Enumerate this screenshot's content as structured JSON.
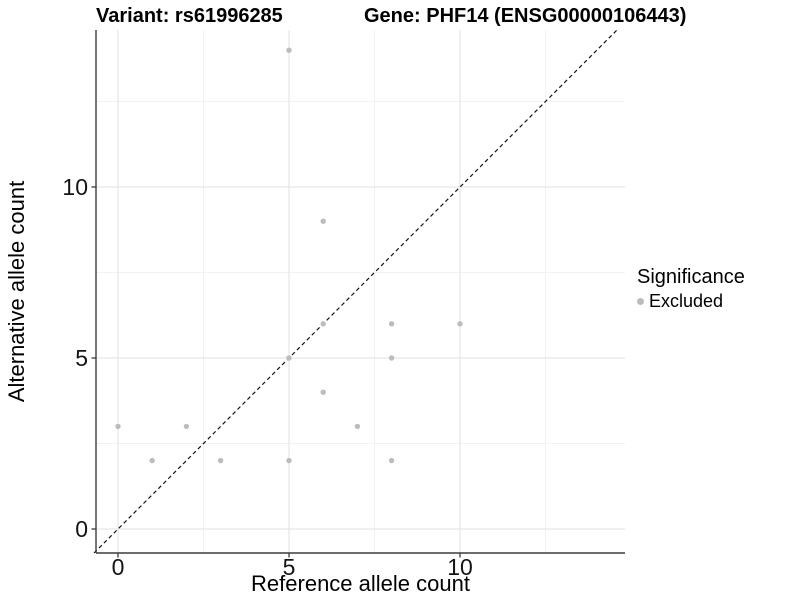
{
  "chart_data": {
    "type": "scatter",
    "title_variant": "Variant: rs61996285",
    "title_gene": "Gene: PHF14 (ENSG00000106443)",
    "xlabel": "Reference allele count",
    "ylabel": "Alternative allele count",
    "xlim": [
      -0.7,
      14.7
    ],
    "ylim": [
      -0.7,
      14.6
    ],
    "x_ticks": [
      0,
      5,
      10
    ],
    "y_ticks": [
      0,
      5,
      10
    ],
    "x_minor_gridlines": [
      2.5,
      7.5,
      12.5
    ],
    "y_minor_gridlines": [
      2.5,
      7.5,
      12.5
    ],
    "grid": true,
    "legend_position": "right",
    "legend": {
      "title": "Significance",
      "items": [
        {
          "label": "Excluded",
          "color": "#bcbcbc"
        }
      ]
    },
    "series": [
      {
        "name": "Excluded",
        "color": "#bcbcbc",
        "points": [
          [
            0,
            3
          ],
          [
            1,
            2
          ],
          [
            2,
            3
          ],
          [
            3,
            2
          ],
          [
            5,
            2
          ],
          [
            5,
            5
          ],
          [
            5,
            14
          ],
          [
            6,
            4
          ],
          [
            6,
            6
          ],
          [
            6,
            9
          ],
          [
            7,
            3
          ],
          [
            8,
            2
          ],
          [
            8,
            5
          ],
          [
            8,
            6
          ],
          [
            10,
            6
          ]
        ]
      }
    ],
    "reference_line": {
      "style": "dashed",
      "slope": 1,
      "intercept": 0,
      "color": "#141414"
    }
  },
  "colors": {
    "background": "#ffffff",
    "grid_major": "#e7e7e7",
    "grid_minor": "#f2f2f2",
    "axis": "#3c3c3c",
    "point": "#bcbcbc",
    "text": "#000000"
  }
}
